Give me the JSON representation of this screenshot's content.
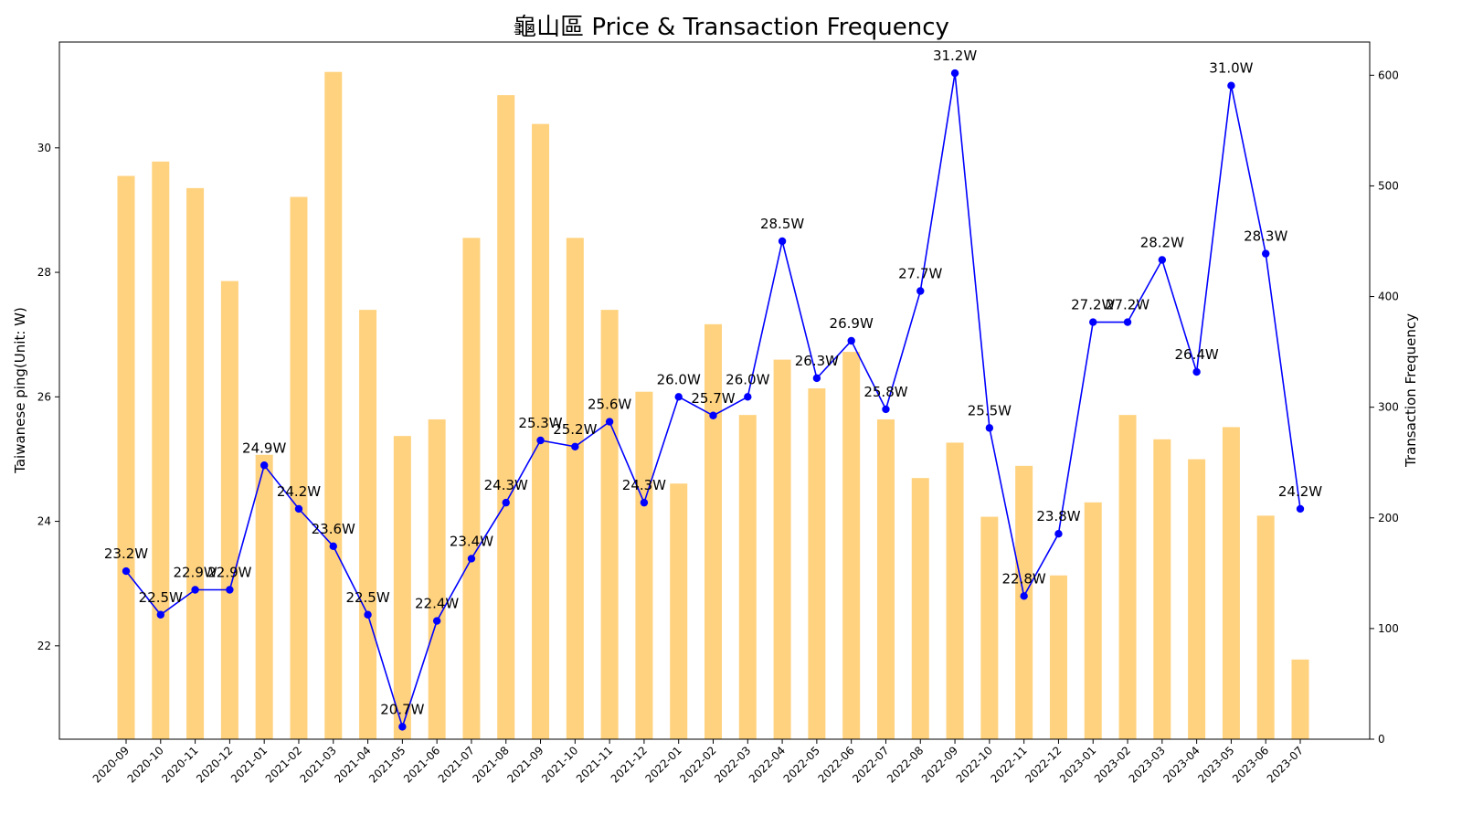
{
  "chart_data": {
    "type": "bar+line",
    "title": "龜山區 Price & Transaction Frequency",
    "ylabel_left": "Taiwanese ping(Unit: W)",
    "ylabel_right": "Transaction Frequency",
    "ylim_left": [
      20.5,
      31.7
    ],
    "ylim_right": [
      0,
      630
    ],
    "yticks_left": [
      "22",
      "24",
      "26",
      "28",
      "30"
    ],
    "yticks_right": [
      "0",
      "100",
      "200",
      "300",
      "400",
      "500",
      "600"
    ],
    "grid": false,
    "categories": [
      "2020-09",
      "2020-10",
      "2020-11",
      "2020-12",
      "2021-01",
      "2021-02",
      "2021-03",
      "2021-04",
      "2021-05",
      "2021-06",
      "2021-07",
      "2021-08",
      "2021-09",
      "2021-10",
      "2021-11",
      "2021-12",
      "2022-01",
      "2022-02",
      "2022-03",
      "2022-04",
      "2022-05",
      "2022-06",
      "2022-07",
      "2022-08",
      "2022-09",
      "2022-10",
      "2022-11",
      "2022-12",
      "2023-01",
      "2023-02",
      "2023-03",
      "2023-04",
      "2023-05",
      "2023-06",
      "2023-07"
    ],
    "series": [
      {
        "kind": "bar",
        "axis": "right",
        "color": "#ffd27f",
        "values": [
          509,
          522,
          498,
          414,
          257,
          490,
          603,
          388,
          274,
          289,
          453,
          582,
          556,
          453,
          388,
          314,
          231,
          375,
          293,
          343,
          317,
          350,
          289,
          236,
          268,
          201,
          247,
          148,
          214,
          293,
          271,
          253,
          282,
          202,
          72
        ]
      },
      {
        "kind": "line",
        "axis": "left",
        "color": "#0000ff",
        "values": [
          23.2,
          22.5,
          22.9,
          22.9,
          24.9,
          24.2,
          23.6,
          22.5,
          20.7,
          22.4,
          23.4,
          24.3,
          25.3,
          25.2,
          25.6,
          24.3,
          26.0,
          25.7,
          26.0,
          28.5,
          26.3,
          26.9,
          25.8,
          27.7,
          31.2,
          25.5,
          22.8,
          23.8,
          27.2,
          27.2,
          28.2,
          26.4,
          31.0,
          28.3,
          24.2
        ],
        "labels": [
          "23.2W",
          "22.5W",
          "22.9W",
          "22.9W",
          "24.9W",
          "24.2W",
          "23.6W",
          "22.5W",
          "20.7W",
          "22.4W",
          "23.4W",
          "24.3W",
          "25.3W",
          "25.2W",
          "25.6W",
          "24.3W",
          "26.0W",
          "25.7W",
          "26.0W",
          "28.5W",
          "26.3W",
          "26.9W",
          "25.8W",
          "27.7W",
          "31.2W",
          "25.5W",
          "22.8W",
          "23.8W",
          "27.2W",
          "27.2W",
          "28.2W",
          "26.4W",
          "31.0W",
          "28.3W",
          "24.2W"
        ]
      }
    ]
  }
}
